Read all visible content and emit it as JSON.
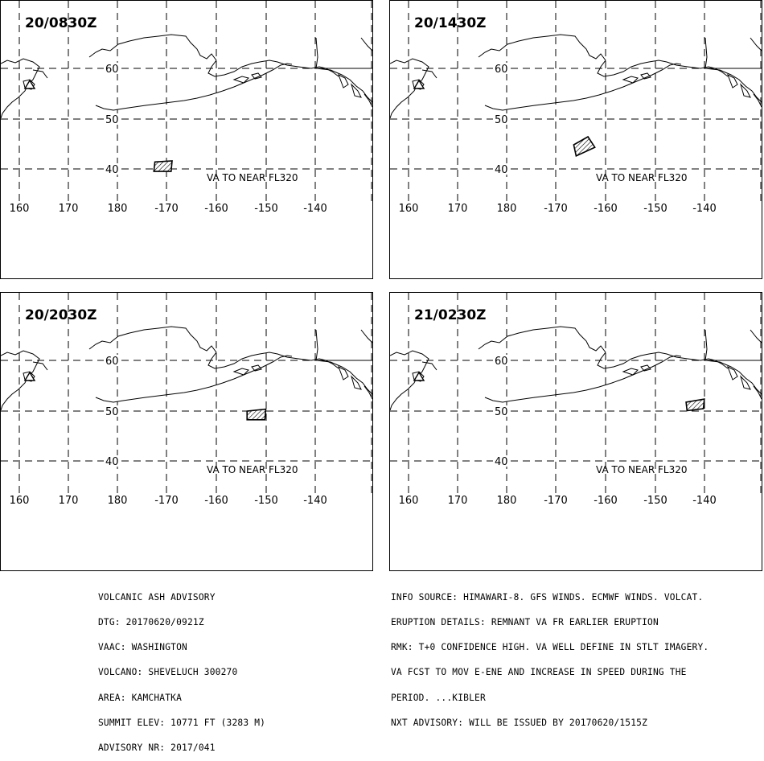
{
  "panels": [
    {
      "time": "20/0830Z",
      "note": "VA TO NEAR FL320",
      "lon_labels": [
        "160",
        "170",
        "180",
        "-170",
        "-160",
        "-150",
        "-140"
      ],
      "lat_labels": [
        "60",
        "50",
        "40"
      ],
      "ash_polygon": [
        [
          -172.5,
          41.4
        ],
        [
          -169.0,
          41.6
        ],
        [
          -169.2,
          39.5
        ],
        [
          -172.7,
          39.5
        ]
      ]
    },
    {
      "time": "20/1430Z",
      "note": "VA TO NEAR FL320",
      "lon_labels": [
        "160",
        "170",
        "180",
        "-170",
        "-160",
        "-150",
        "-140"
      ],
      "lat_labels": [
        "60",
        "50",
        "40"
      ],
      "ash_polygon": [
        [
          -166.5,
          44.8
        ],
        [
          -163.6,
          46.4
        ],
        [
          -162.2,
          44.3
        ],
        [
          -166.0,
          42.6
        ]
      ]
    },
    {
      "time": "20/2030Z",
      "note": "VA TO NEAR FL320",
      "lon_labels": [
        "160",
        "170",
        "180",
        "-170",
        "-160",
        "-150",
        "-140"
      ],
      "lat_labels": [
        "60",
        "50",
        "40"
      ],
      "ash_polygon": [
        [
          -153.8,
          49.9
        ],
        [
          -150.0,
          50.3
        ],
        [
          -150.2,
          48.2
        ],
        [
          -153.8,
          48.2
        ]
      ]
    },
    {
      "time": "21/0230Z",
      "note": "VA TO NEAR FL320",
      "lon_labels": [
        "160",
        "170",
        "180",
        "-170",
        "-160",
        "-150",
        "-140"
      ],
      "lat_labels": [
        "60",
        "50",
        "40"
      ],
      "ash_polygon": [
        [
          -143.7,
          51.7
        ],
        [
          -140.0,
          52.3
        ],
        [
          -140.2,
          50.4
        ],
        [
          -143.5,
          50.0
        ]
      ]
    }
  ],
  "advisory_left": [
    "VOLCANIC ASH ADVISORY",
    "DTG: 20170620/0921Z",
    "VAAC: WASHINGTON",
    "VOLCANO: SHEVELUCH 300270",
    "AREA: KAMCHATKA",
    "SUMMIT ELEV: 10771 FT (3283 M)",
    "ADVISORY NR: 2017/041"
  ],
  "advisory_right": [
    "INFO SOURCE: HIMAWARI-8. GFS WINDS. ECMWF WINDS. VOLCAT.",
    "ERUPTION DETAILS: REMNANT VA FR EARLIER ERUPTION",
    "RMK: T+0 CONFIDENCE HIGH. VA WELL DEFINE IN STLT IMAGERY.",
    "VA FCST TO MOV E-ENE AND INCREASE IN SPEED DURING THE",
    "PERIOD. ...KIBLER",
    "NXT ADVISORY: WILL BE ISSUED BY 20170620/1515Z"
  ]
}
